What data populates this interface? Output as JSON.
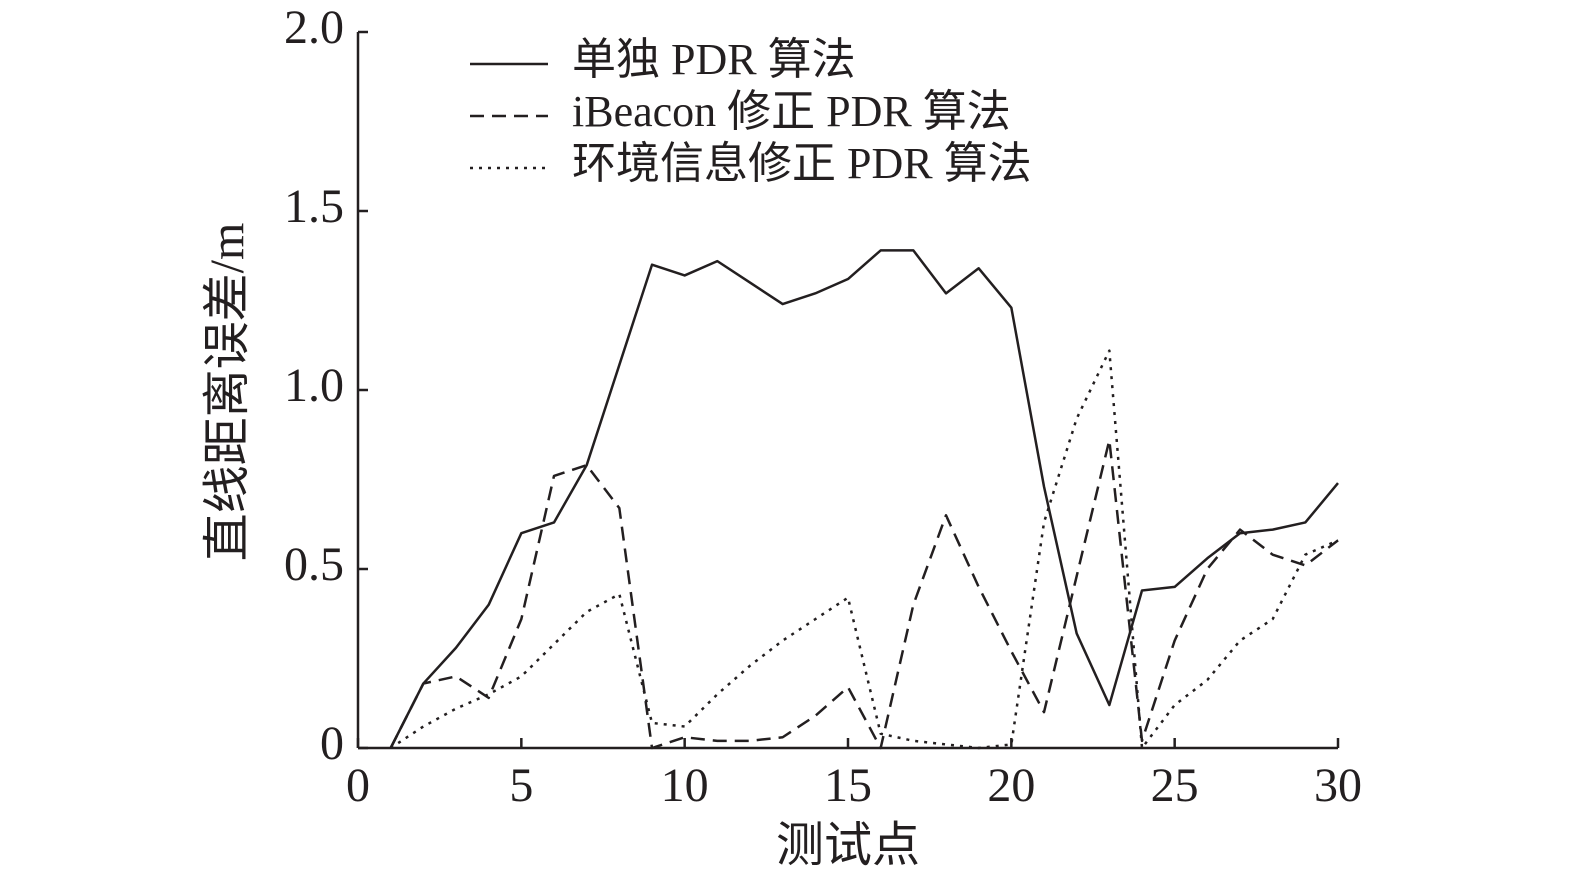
{
  "chart_data": {
    "type": "line",
    "xlabel": "测试点",
    "ylabel": "直线距离误差/m",
    "x": [
      1,
      2,
      3,
      4,
      5,
      6,
      7,
      8,
      9,
      10,
      11,
      12,
      13,
      14,
      15,
      16,
      17,
      18,
      19,
      20,
      21,
      22,
      23,
      24,
      25,
      26,
      27,
      28,
      29,
      30
    ],
    "series": [
      {
        "name": "单独 PDR 算法",
        "color": "#231f20",
        "dash": "solid",
        "values": [
          0,
          0.18,
          0.28,
          0.4,
          0.6,
          0.63,
          0.79,
          1.07,
          1.35,
          1.32,
          1.36,
          1.3,
          1.24,
          1.27,
          1.31,
          1.39,
          1.39,
          1.27,
          1.34,
          1.23,
          0.73,
          0.32,
          0.12,
          0.44,
          0.45,
          0.53,
          0.6,
          0.61,
          0.63,
          0.74
        ]
      },
      {
        "name": "iBeacon 修正 PDR 算法",
        "color": "#231f20",
        "dash": "dashed",
        "values": [
          0,
          0.18,
          0.2,
          0.14,
          0.36,
          0.76,
          0.79,
          0.67,
          0.0,
          0.03,
          0.02,
          0.02,
          0.03,
          0.09,
          0.17,
          0.0,
          0.4,
          0.65,
          0.45,
          0.27,
          0.1,
          0.48,
          0.86,
          0.02,
          0.3,
          0.5,
          0.61,
          0.54,
          0.51,
          0.58
        ]
      },
      {
        "name": "环境信息修正 PDR 算法",
        "color": "#231f20",
        "dash": "dotted",
        "values": [
          0,
          0.06,
          0.11,
          0.15,
          0.2,
          0.29,
          0.38,
          0.43,
          0.07,
          0.06,
          0.15,
          0.23,
          0.3,
          0.36,
          0.42,
          0.04,
          0.02,
          0.01,
          0.0,
          0.01,
          0.63,
          0.92,
          1.11,
          0.0,
          0.12,
          0.19,
          0.3,
          0.36,
          0.54,
          0.58
        ]
      }
    ],
    "xlim": [
      0,
      30
    ],
    "xticks": [
      0,
      5,
      10,
      15,
      20,
      25,
      30
    ],
    "ylim": [
      0,
      2
    ],
    "yticks": [
      0,
      {
        "value": 0.5,
        "label": "0.5"
      },
      {
        "value": 1,
        "label": "1.0"
      },
      {
        "value": 1.5,
        "label": "1.5"
      },
      {
        "value": 2,
        "label": "2.0"
      }
    ],
    "legend": "upper center"
  }
}
